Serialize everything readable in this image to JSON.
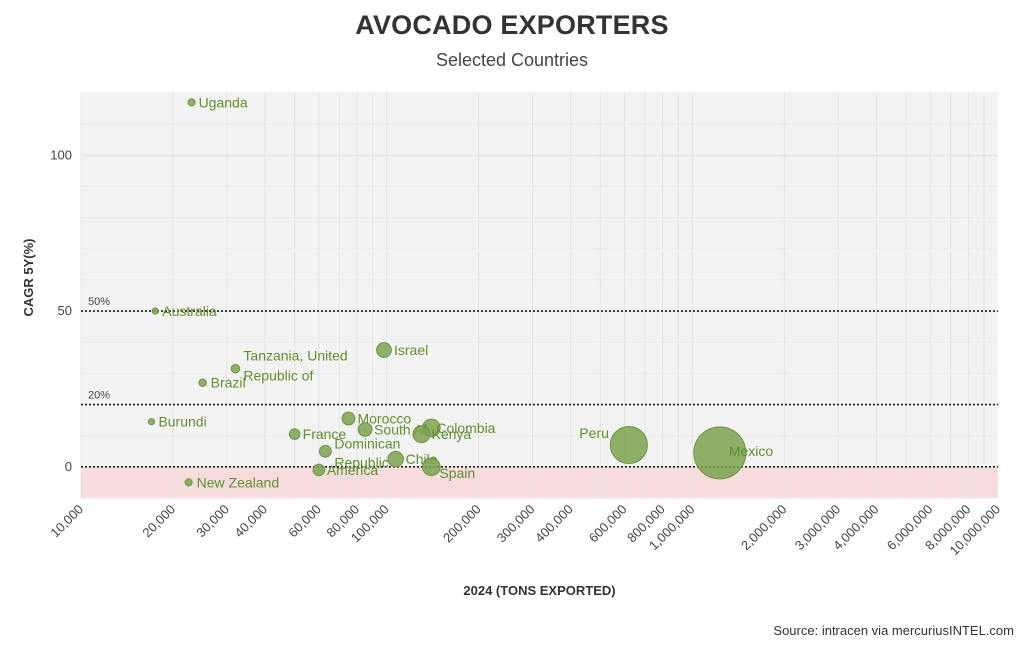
{
  "chart_data": {
    "type": "scatter",
    "title": "AVOCADO EXPORTERS",
    "subtitle": "Selected Countries",
    "xlabel": "2024 (TONS EXPORTED)",
    "ylabel": "CAGR 5Y(%)",
    "x_scale": "log",
    "xlim": [
      10000,
      10000000
    ],
    "ylim": [
      -10,
      120
    ],
    "x_ticks": [
      10000,
      20000,
      30000,
      40000,
      60000,
      80000,
      100000,
      200000,
      300000,
      400000,
      600000,
      800000,
      1000000,
      2000000,
      3000000,
      4000000,
      6000000,
      8000000,
      10000000
    ],
    "x_tick_labels": [
      "10,000",
      "20,000",
      "30,000",
      "40,000",
      "60,000",
      "80,000",
      "100,000",
      "200,000",
      "300,000",
      "400,000",
      "600,000",
      "800,000",
      "1,000,000",
      "2,000,000",
      "3,000,000",
      "4,000,000",
      "6,000,000",
      "8,000,000",
      "10,000,000"
    ],
    "y_ticks": [
      0,
      50,
      100
    ],
    "y_tick_labels": [
      "0",
      "50",
      "100"
    ],
    "reference_lines": [
      {
        "y": 50,
        "label": "50%"
      },
      {
        "y": 20,
        "label": "20%"
      },
      {
        "y": 0,
        "label": ""
      }
    ],
    "negative_zone_color": "#f6dcdc",
    "marker_color": "#7aa24e",
    "grid": true,
    "points": [
      {
        "name": "Uganda",
        "x": 23000,
        "y": 117
      },
      {
        "name": "Australia",
        "x": 17500,
        "y": 50
      },
      {
        "name": "Israel",
        "x": 98000,
        "y": 37.5
      },
      {
        "name": "Tanzania, United Republic of",
        "x": 32000,
        "y": 31.5
      },
      {
        "name": "Brazil",
        "x": 25000,
        "y": 27
      },
      {
        "name": "Burundi",
        "x": 17000,
        "y": 14.5
      },
      {
        "name": "Morocco",
        "x": 75000,
        "y": 15.5
      },
      {
        "name": "Colombia",
        "x": 140000,
        "y": 12.5
      },
      {
        "name": "South Africa",
        "x": 85000,
        "y": 12
      },
      {
        "name": "Kenya",
        "x": 130000,
        "y": 10.5
      },
      {
        "name": "France",
        "x": 50000,
        "y": 10.5
      },
      {
        "name": "Peru",
        "x": 620000,
        "y": 7
      },
      {
        "name": "Dominican Republic",
        "x": 63000,
        "y": 5
      },
      {
        "name": "Mexico",
        "x": 1230000,
        "y": 4.5
      },
      {
        "name": "Chile",
        "x": 107000,
        "y": 2.5
      },
      {
        "name": "Spain",
        "x": 140000,
        "y": 0
      },
      {
        "name": "America",
        "x": 60000,
        "y": -1
      },
      {
        "name": "New Zealand",
        "x": 22500,
        "y": -5
      }
    ]
  },
  "source_note": "Source: intracen via mercuriusINTEL.com"
}
